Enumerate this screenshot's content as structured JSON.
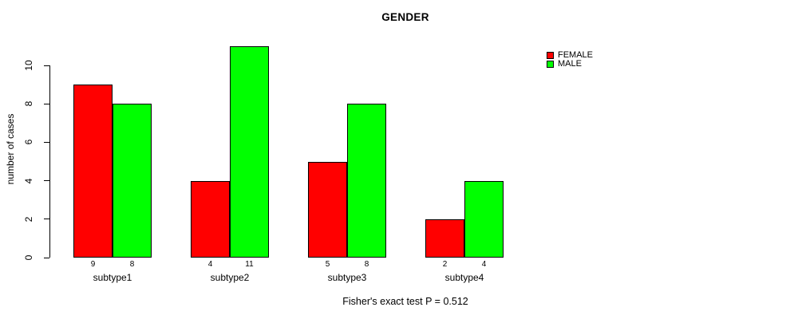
{
  "chart": {
    "title": "GENDER",
    "footnote": "Fisher's exact test P = 0.512"
  },
  "chart_data": {
    "type": "bar",
    "title": "GENDER",
    "categories": [
      "subtype1",
      "subtype2",
      "subtype3",
      "subtype4"
    ],
    "series": [
      {
        "name": "FEMALE",
        "color": "#ff0000",
        "values": [
          9,
          4,
          5,
          2
        ]
      },
      {
        "name": "MALE",
        "color": "#00ff00",
        "values": [
          8,
          11,
          8,
          4
        ]
      }
    ],
    "xlabel": "",
    "ylabel": "number of cases",
    "yticks": [
      0,
      2,
      4,
      6,
      8,
      10
    ],
    "ylim": [
      0,
      11
    ],
    "grid": false,
    "bar_value_labels": [
      [
        "9",
        "8"
      ],
      [
        "4",
        "11"
      ],
      [
        "5",
        "8"
      ],
      [
        "2",
        "4"
      ]
    ],
    "legend_position": "top-right",
    "annotation": "Fisher's exact test P = 0.512",
    "bar_border_color": "#000000"
  }
}
